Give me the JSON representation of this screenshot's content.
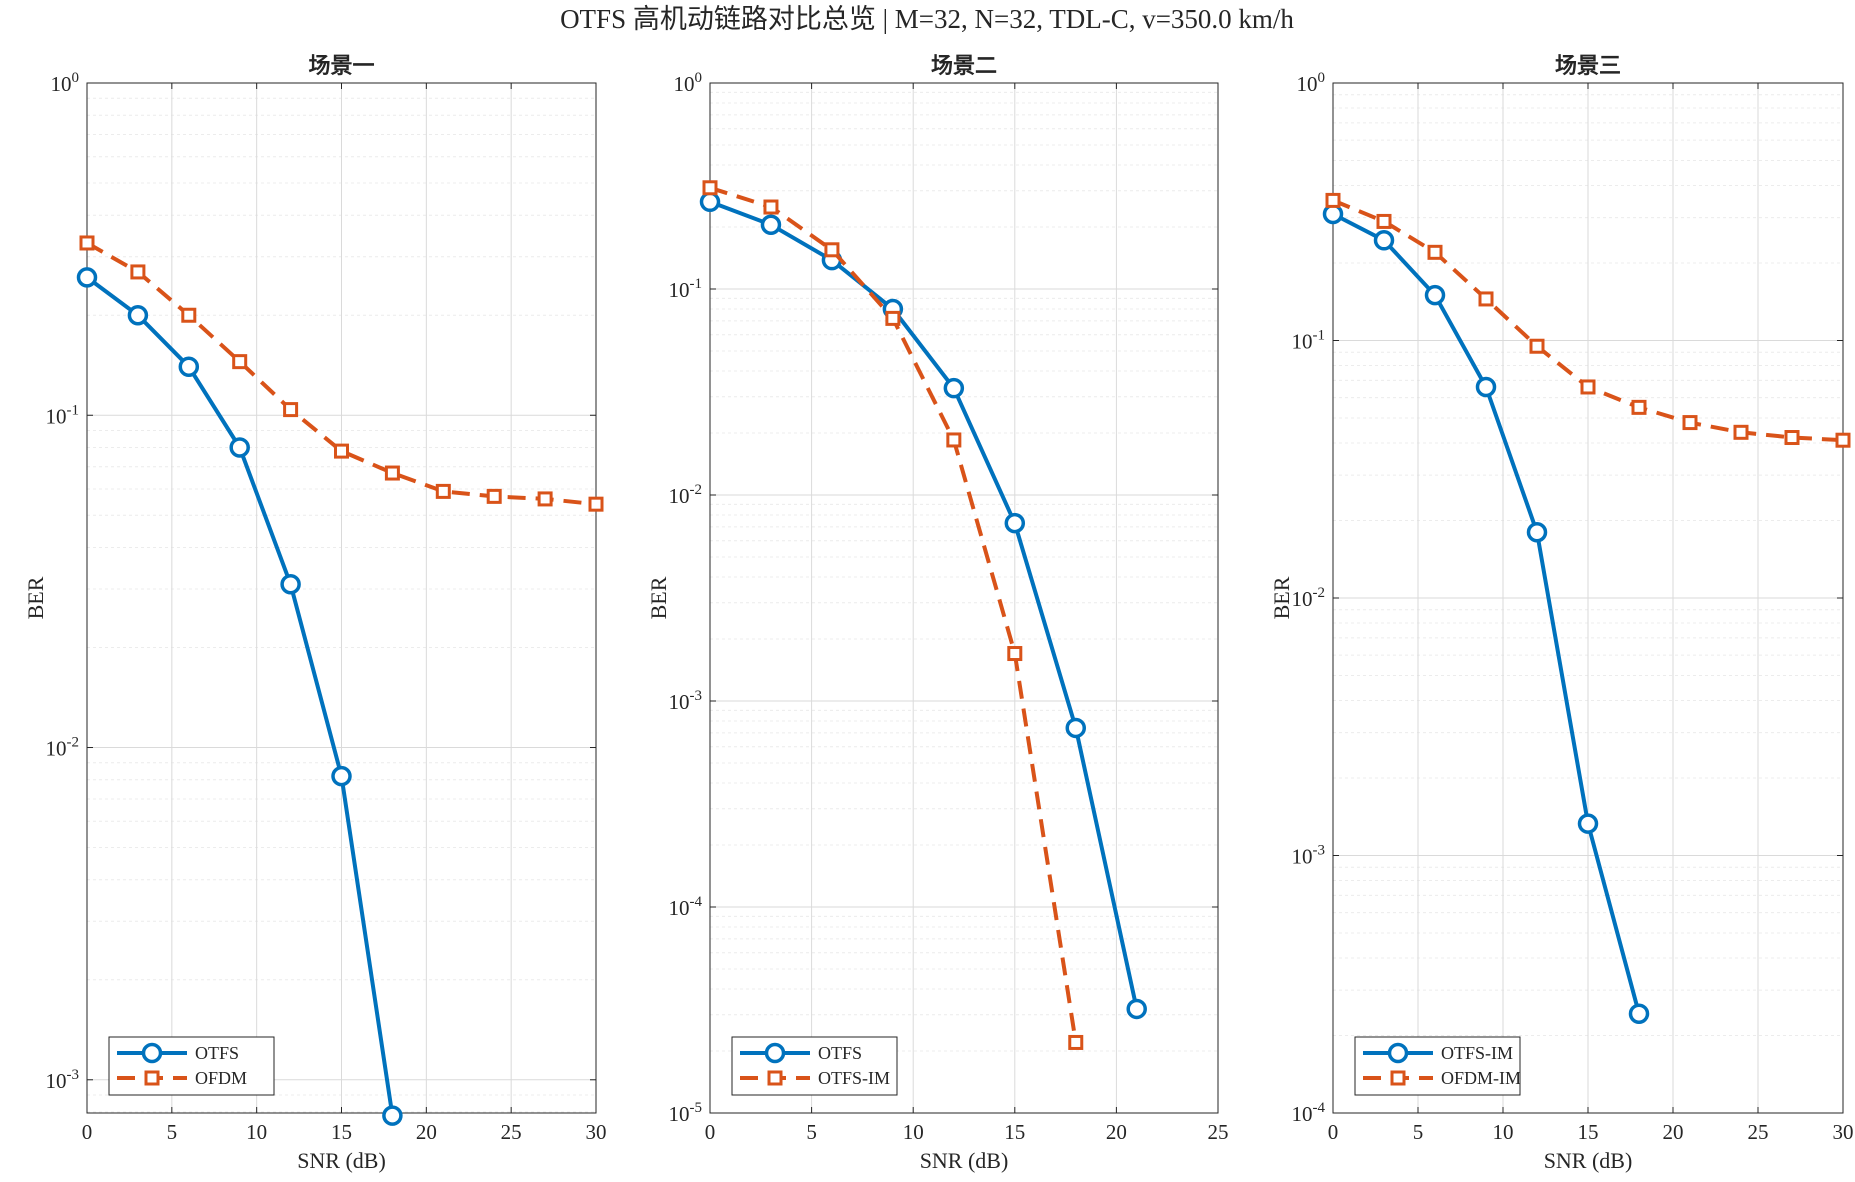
{
  "figure_title": "OTFS 高机动链路对比总览 | M=32, N=32, TDL-C, v=350.0 km/h",
  "colors": {
    "series1": "#0072BD",
    "series2": "#D95319",
    "grid": "#e3e3e3",
    "axis": "#262626"
  },
  "chart_data": [
    {
      "type": "line",
      "title": "场景一",
      "xlabel": "SNR (dB)",
      "ylabel": "BER",
      "xscale": "linear",
      "yscale": "log",
      "xlim": [
        0,
        30
      ],
      "ylim_exp": [
        -3.1,
        0
      ],
      "xticks": [
        0,
        5,
        10,
        15,
        20,
        25,
        30
      ],
      "yticks_exp": [
        -3,
        -2,
        -1,
        0
      ],
      "ytick_labels": [
        {
          "base": "10",
          "exp": "-3"
        },
        {
          "base": "10",
          "exp": "-2"
        },
        {
          "base": "10",
          "exp": "-1"
        },
        {
          "base": "10",
          "exp": "0"
        }
      ],
      "grid": true,
      "legend_position": "bottom-left",
      "series": [
        {
          "name": "OTFS",
          "marker": "circle",
          "line": "solid",
          "x": [
            0,
            3,
            6,
            9,
            12,
            15,
            18
          ],
          "y": [
            0.26,
            0.2,
            0.14,
            0.08,
            0.031,
            0.0082,
            0.00078
          ]
        },
        {
          "name": "OFDM",
          "marker": "square",
          "line": "dashed",
          "x": [
            0,
            3,
            6,
            9,
            12,
            15,
            18,
            21,
            24,
            27,
            30
          ],
          "y": [
            0.33,
            0.27,
            0.2,
            0.145,
            0.104,
            0.078,
            0.067,
            0.059,
            0.057,
            0.056,
            0.054
          ]
        }
      ]
    },
    {
      "type": "line",
      "title": "场景二",
      "xlabel": "SNR (dB)",
      "ylabel": "BER",
      "xscale": "linear",
      "yscale": "log",
      "xlim": [
        0,
        25
      ],
      "ylim_exp": [
        -5,
        0
      ],
      "xticks": [
        0,
        5,
        10,
        15,
        20,
        25
      ],
      "yticks_exp": [
        -5,
        -4,
        -3,
        -2,
        -1,
        0
      ],
      "ytick_labels": [
        {
          "base": "10",
          "exp": "-5"
        },
        {
          "base": "10",
          "exp": "-4"
        },
        {
          "base": "10",
          "exp": "-3"
        },
        {
          "base": "10",
          "exp": "-2"
        },
        {
          "base": "10",
          "exp": "-1"
        },
        {
          "base": "10",
          "exp": "0"
        }
      ],
      "grid": true,
      "legend_position": "bottom-left",
      "series": [
        {
          "name": "OTFS",
          "marker": "circle",
          "line": "solid",
          "x": [
            0,
            3,
            6,
            9,
            12,
            15,
            18,
            21
          ],
          "y": [
            0.265,
            0.205,
            0.138,
            0.08,
            0.033,
            0.0073,
            0.00074,
            3.2e-05
          ]
        },
        {
          "name": "OTFS-IM",
          "marker": "square",
          "line": "dashed",
          "x": [
            0,
            3,
            6,
            9,
            12,
            15,
            18
          ],
          "y": [
            0.31,
            0.25,
            0.155,
            0.072,
            0.0185,
            0.0017,
            2.2e-05
          ]
        }
      ]
    },
    {
      "type": "line",
      "title": "场景三",
      "xlabel": "SNR (dB)",
      "ylabel": "BER",
      "xscale": "linear",
      "yscale": "log",
      "xlim": [
        0,
        30
      ],
      "ylim_exp": [
        -4,
        0
      ],
      "xticks": [
        0,
        5,
        10,
        15,
        20,
        25,
        30
      ],
      "yticks_exp": [
        -4,
        -3,
        -2,
        -1,
        0
      ],
      "ytick_labels": [
        {
          "base": "10",
          "exp": "-4"
        },
        {
          "base": "10",
          "exp": "-3"
        },
        {
          "base": "10",
          "exp": "-2"
        },
        {
          "base": "10",
          "exp": "-1"
        },
        {
          "base": "10",
          "exp": "0"
        }
      ],
      "grid": true,
      "legend_position": "bottom-left",
      "series": [
        {
          "name": "OTFS-IM",
          "marker": "circle",
          "line": "solid",
          "x": [
            0,
            3,
            6,
            9,
            12,
            15,
            18
          ],
          "y": [
            0.31,
            0.245,
            0.15,
            0.066,
            0.018,
            0.00133,
            0.000243
          ]
        },
        {
          "name": "OFDM-IM",
          "marker": "square",
          "line": "dashed",
          "x": [
            0,
            3,
            6,
            9,
            12,
            15,
            18,
            21,
            24,
            27,
            30
          ],
          "y": [
            0.35,
            0.29,
            0.22,
            0.145,
            0.095,
            0.066,
            0.055,
            0.048,
            0.044,
            0.042,
            0.041
          ]
        }
      ]
    }
  ]
}
